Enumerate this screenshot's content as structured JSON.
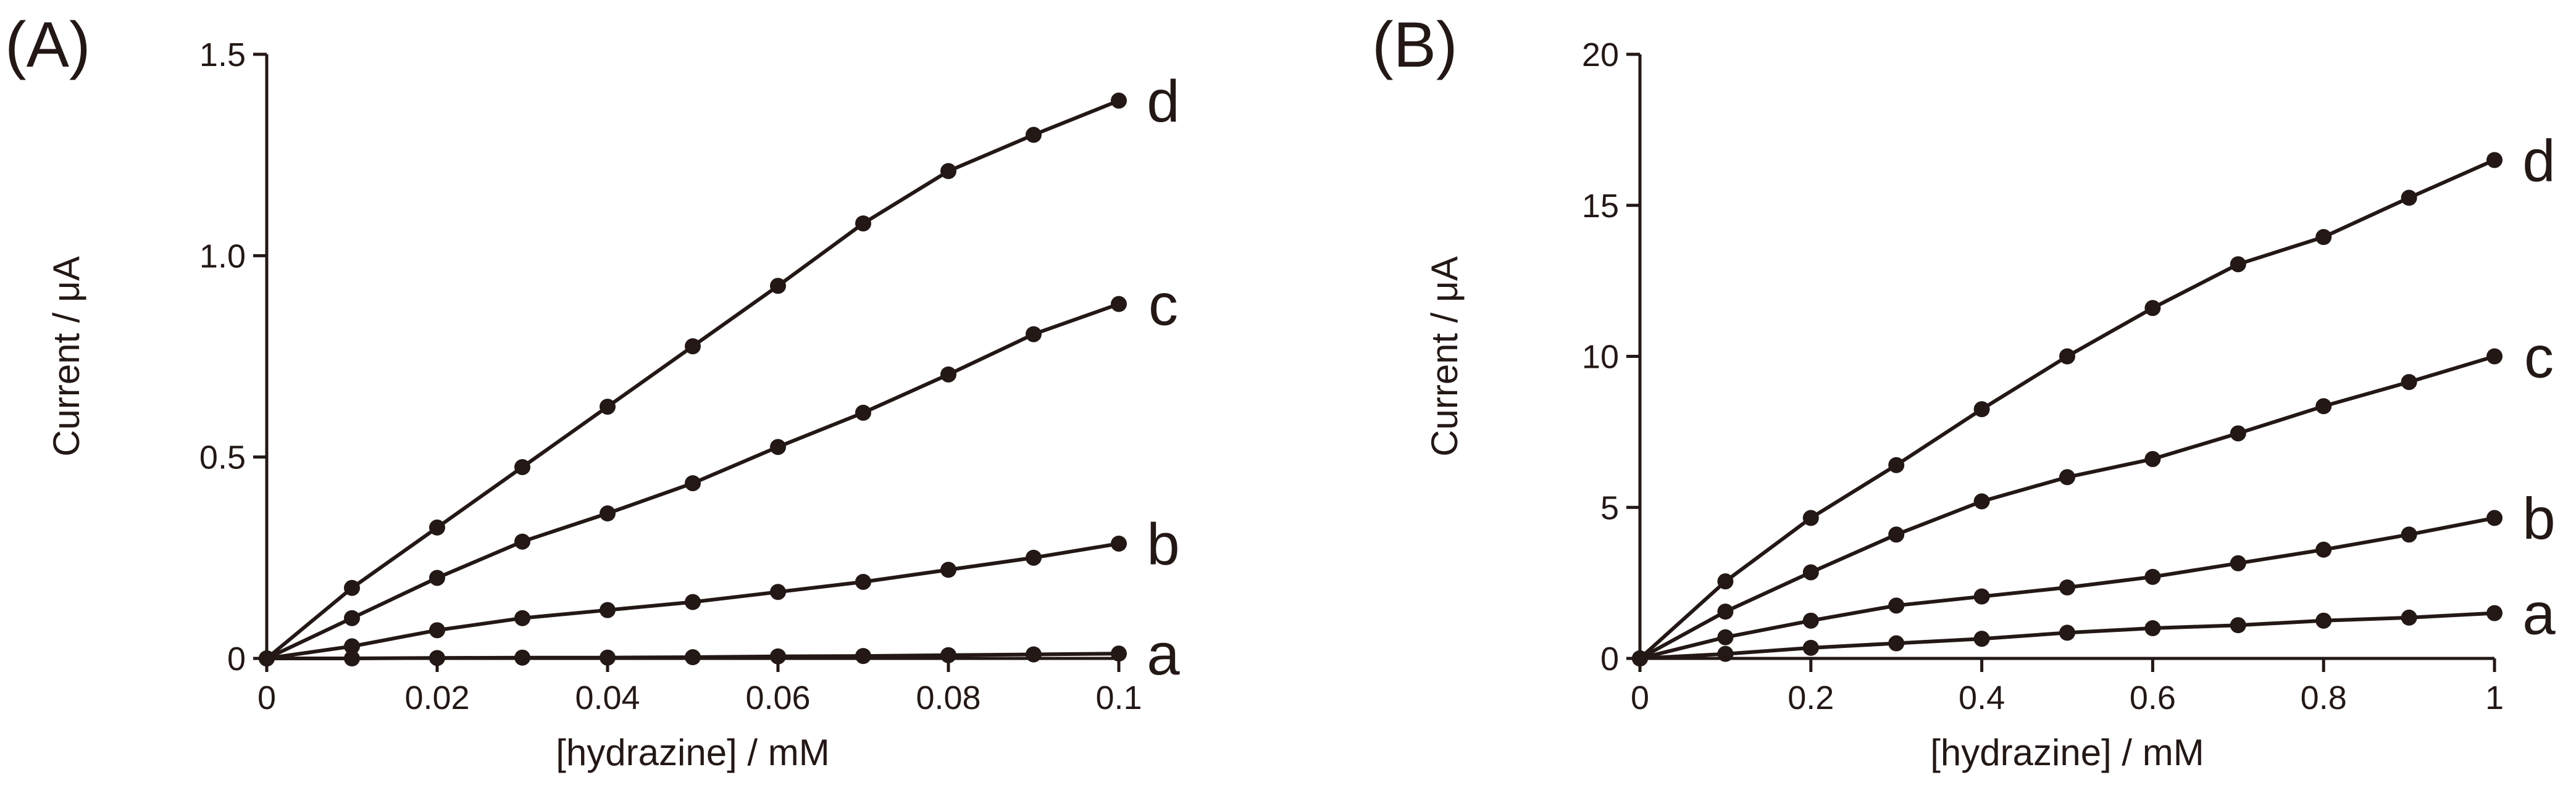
{
  "colors": {
    "ink": "#231815",
    "series_a": "#231815",
    "series_b": "#231815"
  },
  "chart_data": [
    {
      "panel_label": "(A)",
      "type": "line",
      "title": "",
      "xlabel": "[hydrazine] / mM",
      "ylabel": "Current / μA",
      "xlim": [
        0,
        0.1
      ],
      "ylim": [
        0,
        1.5
      ],
      "xticks": [
        0,
        0.02,
        0.04,
        0.06,
        0.08,
        0.1
      ],
      "xtick_labels": [
        "0",
        "0.02",
        "0.04",
        "0.06",
        "0.08",
        "0.1"
      ],
      "yticks": [
        0,
        0.5,
        1.0,
        1.5
      ],
      "ytick_labels": [
        "0",
        "0.5",
        "1.0",
        "1.5"
      ],
      "grid": false,
      "legend": "curve labels at line ends",
      "x": [
        0,
        0.01,
        0.02,
        0.03,
        0.04,
        0.05,
        0.06,
        0.07,
        0.08,
        0.09,
        0.1
      ],
      "series": [
        {
          "name": "a",
          "values": [
            0,
            0.0,
            0.001,
            0.002,
            0.002,
            0.003,
            0.005,
            0.006,
            0.008,
            0.01,
            0.012
          ]
        },
        {
          "name": "b",
          "values": [
            0,
            0.03,
            0.07,
            0.1,
            0.12,
            0.14,
            0.165,
            0.19,
            0.22,
            0.25,
            0.285
          ]
        },
        {
          "name": "c",
          "values": [
            0,
            0.1,
            0.2,
            0.29,
            0.36,
            0.435,
            0.525,
            0.61,
            0.705,
            0.805,
            0.88
          ]
        },
        {
          "name": "d",
          "values": [
            0,
            0.175,
            0.325,
            0.475,
            0.625,
            0.775,
            0.925,
            1.08,
            1.21,
            1.3,
            1.385
          ]
        }
      ]
    },
    {
      "panel_label": "(B)",
      "type": "line",
      "title": "",
      "xlabel": "[hydrazine] / mM",
      "ylabel": "Current / μA",
      "xlim": [
        0,
        1
      ],
      "ylim": [
        0,
        20
      ],
      "xticks": [
        0,
        0.2,
        0.4,
        0.6,
        0.8,
        1
      ],
      "xtick_labels": [
        "0",
        "0.2",
        "0.4",
        "0.6",
        "0.8",
        "1"
      ],
      "yticks": [
        0,
        5,
        10,
        15,
        20
      ],
      "ytick_labels": [
        "0",
        "5",
        "10",
        "15",
        "20"
      ],
      "grid": false,
      "legend": "curve labels at line ends",
      "x": [
        0,
        0.1,
        0.2,
        0.3,
        0.4,
        0.5,
        0.6,
        0.7,
        0.8,
        0.9,
        1
      ],
      "series": [
        {
          "name": "a",
          "values": [
            0,
            0.15,
            0.35,
            0.5,
            0.65,
            0.85,
            1.0,
            1.1,
            1.25,
            1.35,
            1.5
          ]
        },
        {
          "name": "b",
          "values": [
            0,
            0.7,
            1.25,
            1.75,
            2.05,
            2.35,
            2.7,
            3.15,
            3.6,
            4.1,
            4.65
          ]
        },
        {
          "name": "c",
          "values": [
            0,
            1.55,
            2.85,
            4.1,
            5.2,
            6.0,
            6.6,
            7.45,
            8.35,
            9.15,
            10.0
          ]
        },
        {
          "name": "d",
          "values": [
            0,
            2.55,
            4.65,
            6.4,
            8.25,
            10.0,
            11.6,
            13.05,
            13.95,
            15.25,
            16.5
          ]
        }
      ]
    }
  ]
}
